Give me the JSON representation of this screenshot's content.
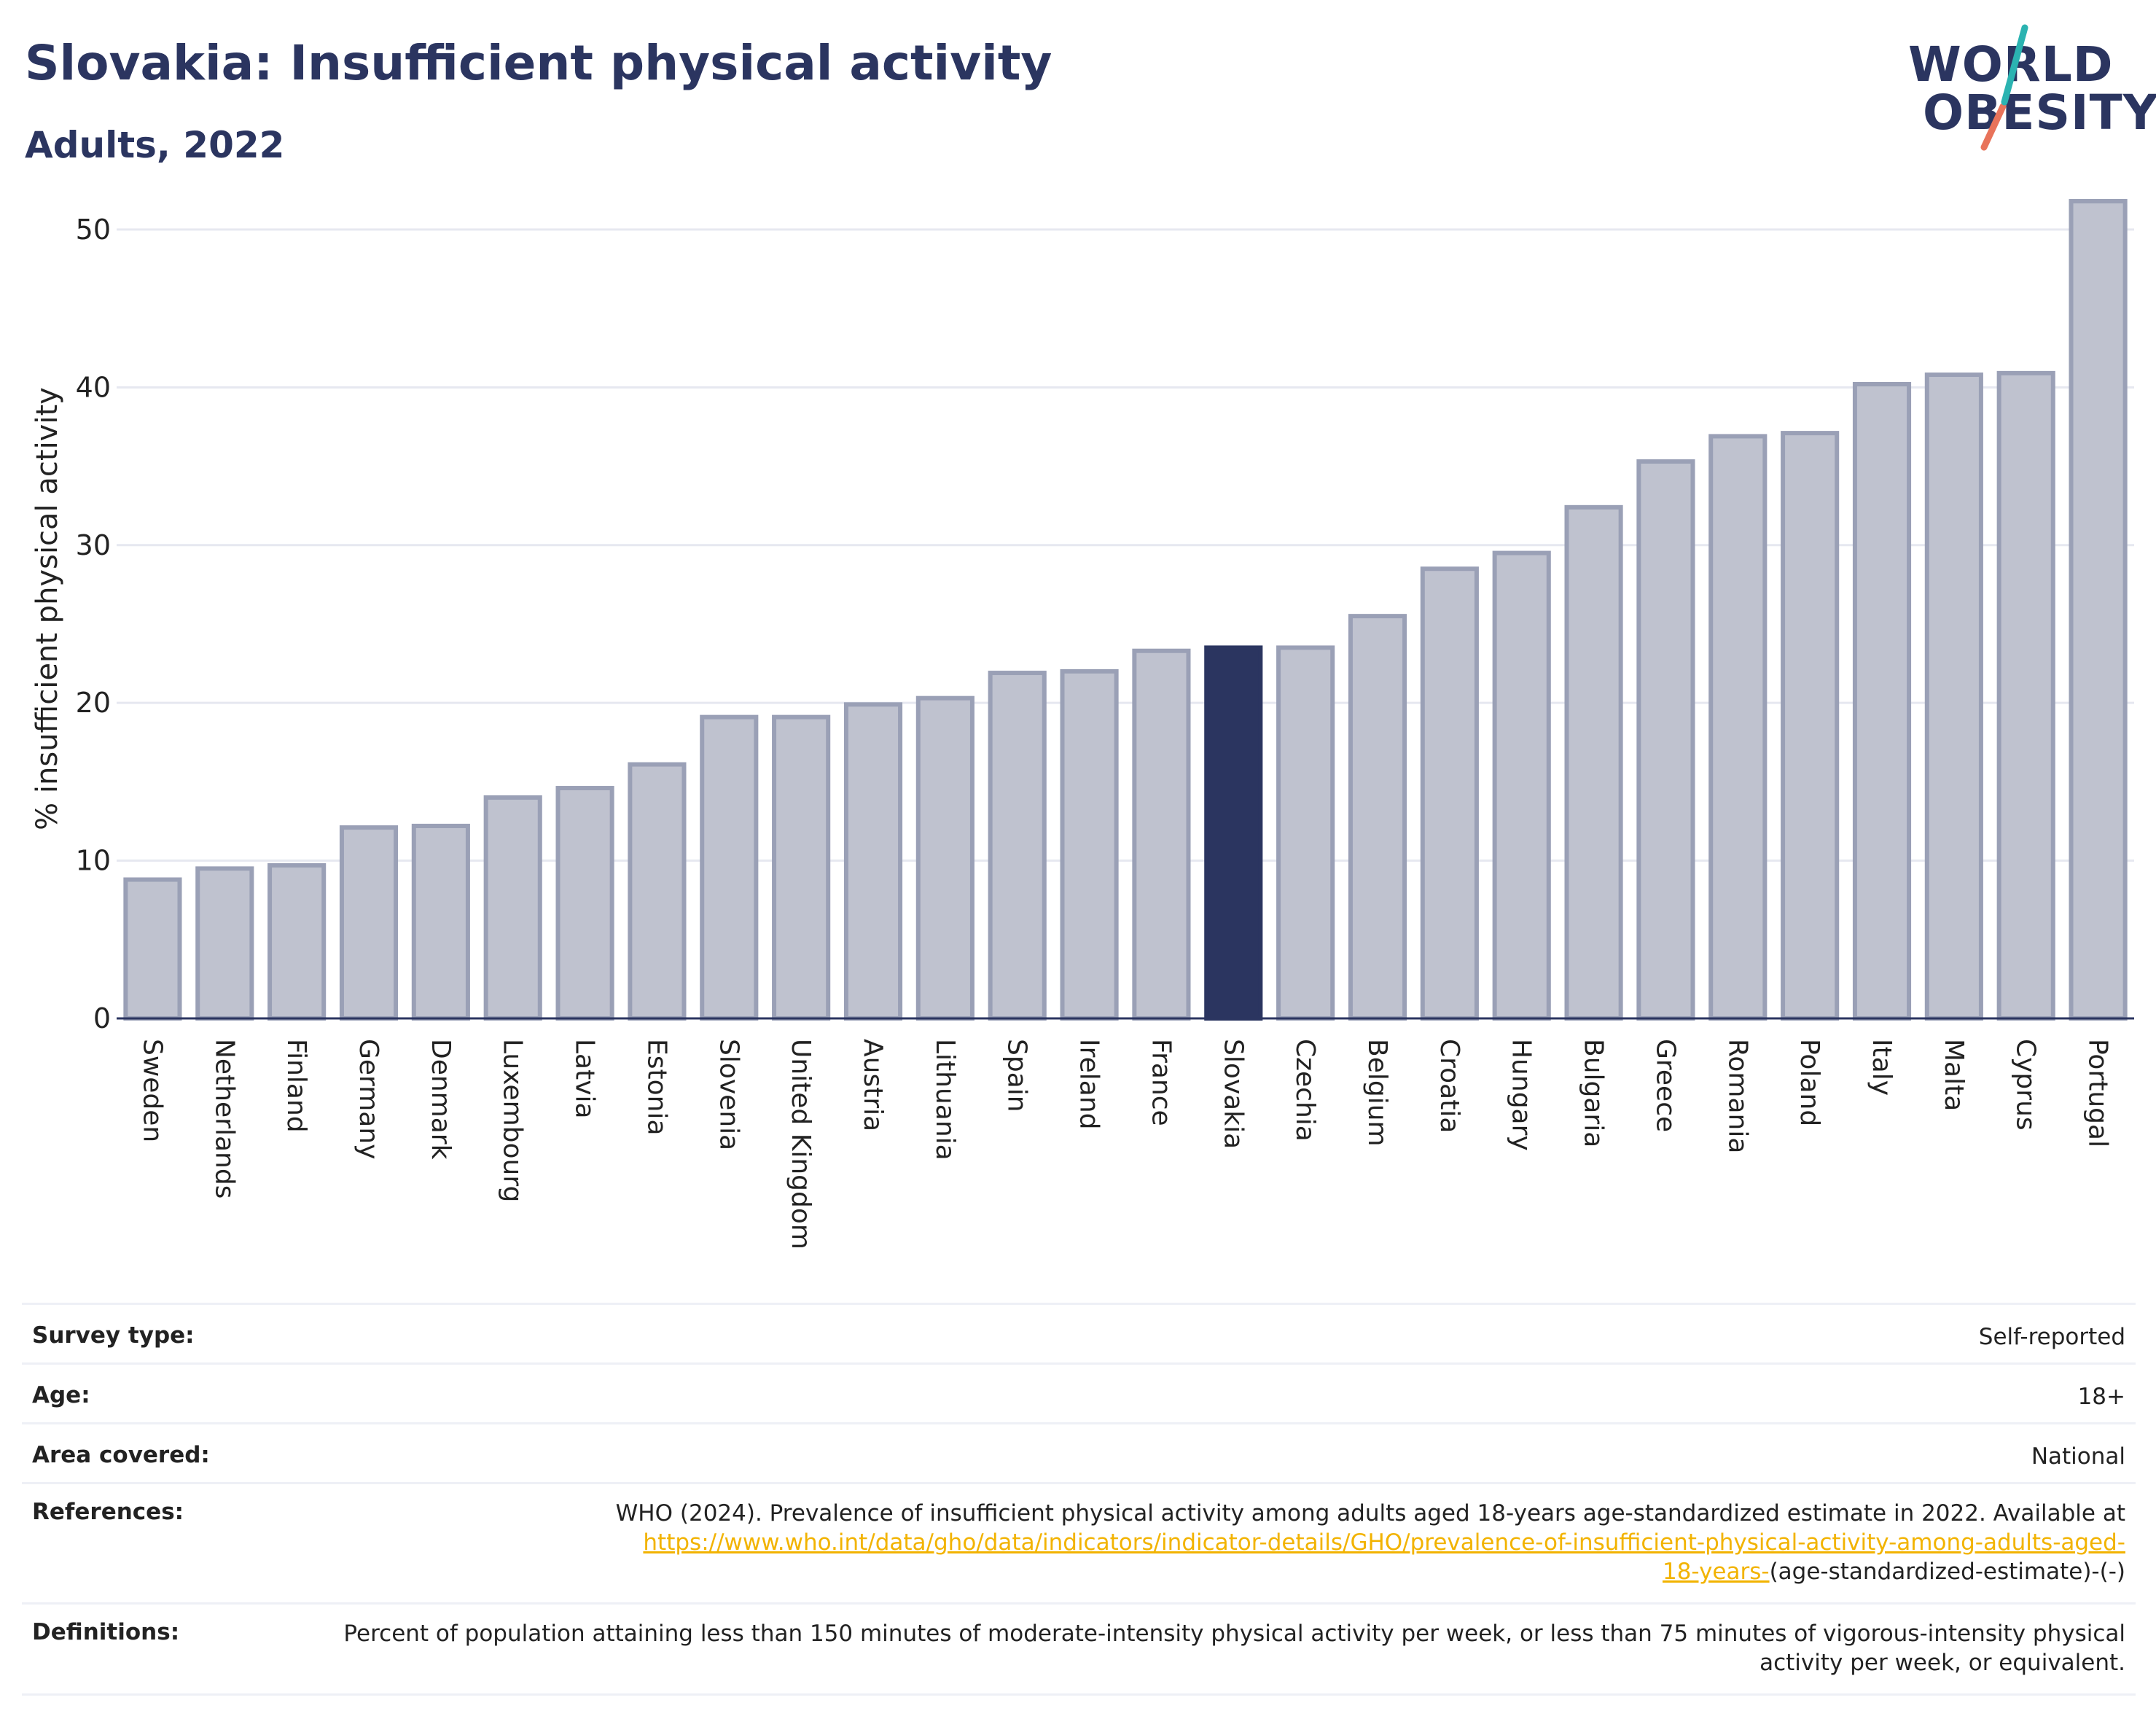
{
  "header": {
    "title": "Slovakia: Insufficient physical activity",
    "subtitle": "Adults, 2022"
  },
  "logo": {
    "line1": "WORLD",
    "line2": "OBESITY",
    "accent_colors": [
      "#2bb3b1",
      "#e8735a"
    ]
  },
  "colors": {
    "highlight_bar": "#2b3560",
    "other_bar": "#bfc2cf",
    "other_bar_stroke": "#9aa0b6",
    "grid": "#e6e8f0",
    "link": "#f2b300"
  },
  "chart_data": {
    "type": "bar",
    "ylabel": "% insufficient physical activity",
    "xlabel": "",
    "ylim": [
      0,
      53
    ],
    "yticks": [
      0,
      10,
      20,
      30,
      40,
      50
    ],
    "grid": true,
    "highlight": "Slovakia",
    "categories": [
      "Sweden",
      "Netherlands",
      "Finland",
      "Germany",
      "Denmark",
      "Luxembourg",
      "Latvia",
      "Estonia",
      "Slovenia",
      "United Kingdom",
      "Austria",
      "Lithuania",
      "Spain",
      "Ireland",
      "France",
      "Slovakia",
      "Czechia",
      "Belgium",
      "Croatia",
      "Hungary",
      "Bulgaria",
      "Greece",
      "Romania",
      "Poland",
      "Italy",
      "Malta",
      "Cyprus",
      "Portugal"
    ],
    "values": [
      8.8,
      9.5,
      9.7,
      12.1,
      12.2,
      14.0,
      14.6,
      16.1,
      19.1,
      19.1,
      19.9,
      20.3,
      21.9,
      22.0,
      23.3,
      23.5,
      23.5,
      25.5,
      28.5,
      29.5,
      32.4,
      35.3,
      36.9,
      37.1,
      40.2,
      40.8,
      40.9,
      51.8
    ]
  },
  "info": {
    "survey_type_label": "Survey type:",
    "survey_type_value": "Self-reported",
    "age_label": "Age:",
    "age_value": "18+",
    "area_label": "Area covered:",
    "area_value": "National",
    "references_label": "References:",
    "references_text": "WHO (2024). Prevalence of insufficient physical activity among adults aged 18-years age-standardized estimate in 2022. Available at",
    "references_link_line1": "https://www.who.int/data/gho/data/indicators/indicator-details/GHO/prevalence-of-insufficient-physical-activity-among-adults-aged-",
    "references_link_line2": "18-years-",
    "references_suffix": "(age-standardized-estimate)-(-)",
    "definitions_label": "Definitions:",
    "definitions_text": "Percent of population attaining less than 150 minutes of moderate-intensity physical activity per week, or less than 75 minutes of vigorous-intensity physical activity per week, or equivalent."
  }
}
